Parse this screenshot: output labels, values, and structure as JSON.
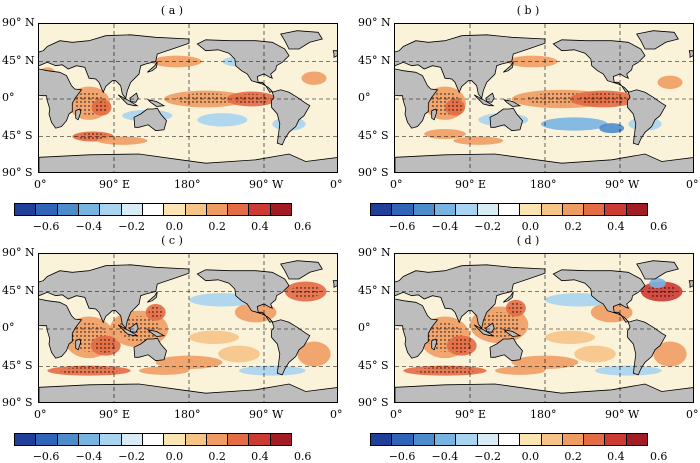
{
  "panels": [
    {
      "label": "( a )",
      "pattern": "a"
    },
    {
      "label": "( b )",
      "pattern": "b"
    },
    {
      "label": "( c )",
      "pattern": "c"
    },
    {
      "label": "( d )",
      "pattern": "d"
    }
  ],
  "lat_labels": [
    "90° N",
    "45° N",
    "0°",
    "45° S",
    "90° S"
  ],
  "lon_labels": [
    "0°",
    "90° E",
    "180°",
    "90° W",
    "0°"
  ],
  "colorbar": {
    "tick_labels": [
      "−0.6",
      "−0.4",
      "−0.2",
      "0.0",
      "0.2",
      "0.4",
      "0.6"
    ],
    "colors": [
      "#1f3f99",
      "#2f64b8",
      "#4d8ccb",
      "#78b4e2",
      "#a9d4ef",
      "#d8ecf6",
      "#ffffff",
      "#fbe6b3",
      "#f6c487",
      "#ef9c63",
      "#e36c45",
      "#cc3b32",
      "#a11c24"
    ]
  },
  "land_color": "#bdbdbd",
  "gridline_style": "dashed"
}
